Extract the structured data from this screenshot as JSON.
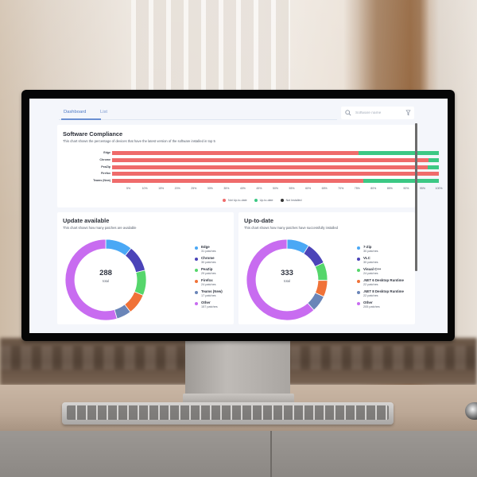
{
  "tabs": [
    {
      "label": "Dashboard",
      "active": true
    },
    {
      "label": "List",
      "active": false
    }
  ],
  "search": {
    "placeholder": "Software name",
    "value": ""
  },
  "icons": {
    "search": "search-icon",
    "filter": "filter-icon"
  },
  "colors": {
    "accent": "#5d84c7",
    "not_up_to_date": "#ef6b6b",
    "up_to_date": "#3cc884",
    "not_installed": "#333333",
    "donut": [
      "#4aa8f5",
      "#4b44b8",
      "#55d66b",
      "#f07238",
      "#6a85b8",
      "#c86cf0"
    ]
  },
  "compliance": {
    "title": "Software Compliance",
    "subtitle": "This chart shows the percentage of devices that have the latest version of the software installed in top 5",
    "legend": [
      {
        "label": "Not Up-to-date",
        "color": "#ef6b6b"
      },
      {
        "label": "Up-to-date",
        "color": "#3cc884"
      },
      {
        "label": "Not Installed",
        "color": "#333333"
      }
    ]
  },
  "update_available": {
    "title": "Update available",
    "subtitle": "This chart shows how many patches are available",
    "total": "288",
    "total_label": "total",
    "items": [
      {
        "name": "Edge",
        "value": "31 patches"
      },
      {
        "name": "Chrome",
        "value": "30 patches"
      },
      {
        "name": "PeaZip",
        "value": "29 patches"
      },
      {
        "name": "Firefox",
        "value": "24 patches"
      },
      {
        "name": "Teams (New)",
        "value": "17 patches"
      },
      {
        "name": "Other",
        "value": "157 patches"
      }
    ]
  },
  "up_to_date": {
    "title": "Up-to-date",
    "subtitle": "This chart shows how many patches have successfully installed",
    "total": "333",
    "total_label": "total",
    "items": [
      {
        "name": "7-Zip",
        "value": "30 patches"
      },
      {
        "name": "VLC",
        "value": "30 patches"
      },
      {
        "name": "Visual C++",
        "value": "24 patches"
      },
      {
        "name": ".NET 6 Desktop Runtime",
        "value": "22 patches"
      },
      {
        "name": ".NET 8 Desktop Runtime",
        "value": "22 patches"
      },
      {
        "name": "Other",
        "value": "205 patches"
      }
    ]
  },
  "chart_data": [
    {
      "type": "bar",
      "orientation": "horizontal",
      "stacked": true,
      "title": "Software Compliance",
      "subtitle": "This chart shows the percentage of devices that have the latest version of the software installed in top 5",
      "categories": [
        "Edge",
        "Chrome",
        "PeaZip",
        "Firefox",
        "Teams (New)"
      ],
      "series": [
        {
          "name": "Not Up-to-date",
          "color": "#ef6b6b",
          "values": [
            75.5,
            96.8,
            96.5,
            100,
            77
          ]
        },
        {
          "name": "Up-to-date",
          "color": "#3cc884",
          "values": [
            24.5,
            3.2,
            3.5,
            0,
            23
          ]
        },
        {
          "name": "Not Installed",
          "color": "#333333",
          "values": [
            0,
            0,
            0,
            0,
            0
          ]
        }
      ],
      "xticks": [
        "5%",
        "10%",
        "15%",
        "20%",
        "25%",
        "30%",
        "35%",
        "40%",
        "45%",
        "50%",
        "55%",
        "60%",
        "65%",
        "70%",
        "75%",
        "80%",
        "85%",
        "90%",
        "95%",
        "100%"
      ],
      "xlim": [
        0,
        100
      ],
      "legend_position": "bottom",
      "grid": false
    },
    {
      "type": "pie",
      "donut": true,
      "title": "Update available",
      "subtitle": "This chart shows how many patches are available",
      "categories": [
        "Edge",
        "Chrome",
        "PeaZip",
        "Firefox",
        "Teams (New)",
        "Other"
      ],
      "values": [
        31,
        30,
        29,
        24,
        17,
        157
      ],
      "colors": [
        "#4aa8f5",
        "#4b44b8",
        "#55d66b",
        "#f07238",
        "#6a85b8",
        "#c86cf0"
      ],
      "center_text": "288",
      "center_label": "total",
      "legend_position": "right"
    },
    {
      "type": "pie",
      "donut": true,
      "title": "Up-to-date",
      "subtitle": "This chart shows how many patches have successfully installed",
      "categories": [
        "7-Zip",
        "VLC",
        "Visual C++",
        ".NET 6 Desktop Runtime",
        ".NET 8 Desktop Runtime",
        "Other"
      ],
      "values": [
        30,
        30,
        24,
        22,
        22,
        205
      ],
      "colors": [
        "#4aa8f5",
        "#4b44b8",
        "#55d66b",
        "#f07238",
        "#6a85b8",
        "#c86cf0"
      ],
      "center_text": "333",
      "center_label": "total",
      "legend_position": "right"
    }
  ]
}
